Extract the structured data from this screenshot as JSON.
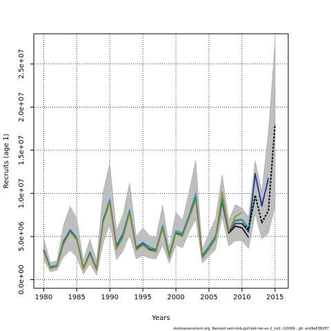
{
  "chart_data": {
    "type": "line",
    "xlabel": "Years",
    "ylabel": "Recruits (age 1)",
    "footer": "stockassessment.org, Revised  sam-tmb-gulf-bot-her-an-2_no2, r10069 ,  git: ecd9e6382ff7",
    "xlim": [
      1978.5,
      2017
    ],
    "ylim": [
      -1000000,
      28500000
    ],
    "x_ticks": [
      1980,
      1985,
      1990,
      1995,
      2000,
      2005,
      2010,
      2015
    ],
    "y_ticks": [
      0,
      5000000,
      10000000,
      15000000,
      20000000,
      25000000
    ],
    "y_tick_labels": [
      "0.0e+00",
      "5.0e+06",
      "1.0e+07",
      "1.5e+07",
      "2.0e+07",
      "2.5e+07"
    ],
    "grid": true,
    "confidence_band": {
      "color": "#bebebe",
      "x": [
        1980,
        1981,
        1982,
        1983,
        1984,
        1985,
        1986,
        1987,
        1988,
        1989,
        1990,
        1991,
        1992,
        1993,
        1994,
        1995,
        1996,
        1997,
        1998,
        1999,
        2000,
        2001,
        2002,
        2003,
        2004,
        2005,
        2006,
        2007,
        2008,
        2009,
        2010,
        2011,
        2012,
        2013,
        2014,
        2015
      ],
      "lower": [
        2300000,
        900000,
        1100000,
        2600000,
        3400000,
        2600000,
        600000,
        1800000,
        500000,
        4200000,
        6500000,
        2300000,
        3300000,
        5200000,
        2400000,
        2800000,
        2500000,
        2400000,
        4000000,
        1900000,
        4000000,
        3700000,
        5500000,
        7000000,
        1900000,
        2700000,
        3500000,
        7300000,
        3900000,
        4500000,
        4500000,
        3600000,
        7600000,
        4700000,
        5400000,
        8500000
      ],
      "upper": [
        4800000,
        2000000,
        2200000,
        6300000,
        8500000,
        7100000,
        2200000,
        4700000,
        2200000,
        10200000,
        13500000,
        5700000,
        7500000,
        11200000,
        5000000,
        6000000,
        5100000,
        4900000,
        8600000,
        3700000,
        7800000,
        6900000,
        10200000,
        13800000,
        3500000,
        5400000,
        7100000,
        12200000,
        6900000,
        8700000,
        8300000,
        7300000,
        13800000,
        10200000,
        17100000,
        27500000
      ]
    },
    "series": [
      {
        "color": "#000000",
        "dashed": false,
        "x": [
          1980,
          1981,
          1982,
          1983,
          1984,
          1985,
          1986,
          1987,
          1988,
          1989,
          1990,
          1991,
          1992,
          1993,
          1994,
          1995,
          1996,
          1997,
          1998,
          1999,
          2000,
          2001,
          2002,
          2003,
          2004,
          2005,
          2006,
          2007,
          2008,
          2009,
          2010,
          2011
        ],
        "y": [
          3300000,
          1300000,
          1500000,
          4200000,
          5600000,
          4700000,
          1200000,
          3000000,
          1100000,
          6700000,
          9000000,
          3600000,
          5000000,
          7800000,
          3500000,
          4100000,
          3500000,
          3300000,
          6000000,
          2600000,
          5400000,
          5100000,
          7200000,
          9300000,
          2600000,
          3600000,
          4800000,
          9000000,
          5400000,
          6200000,
          6000000,
          4900000
        ]
      },
      {
        "color": "#1a9fd0",
        "dashed": false,
        "x": [
          1980,
          1981,
          1982,
          1983,
          1984,
          1985,
          1986,
          1987,
          1988,
          1989,
          1990,
          1991,
          1992,
          1993,
          1994,
          1995,
          1996,
          1997,
          1998,
          1999,
          2000,
          2001,
          2002,
          2003,
          2004,
          2005,
          2006,
          2007,
          2008,
          2009,
          2010,
          2011,
          2012,
          2013,
          2014
        ],
        "y": [
          3500000,
          1500000,
          1700000,
          4500000,
          5800000,
          4900000,
          1400000,
          3200000,
          1300000,
          7000000,
          9300000,
          4000000,
          5400000,
          8100000,
          3800000,
          4300000,
          3800000,
          3500000,
          6300000,
          2900000,
          5700000,
          5400000,
          7500000,
          10000000,
          2800000,
          3900000,
          5100000,
          9500000,
          5700000,
          6900000,
          7000000,
          6000000,
          12000000,
          8800000,
          11500000
        ]
      },
      {
        "color": "#2c2c8c",
        "dashed": false,
        "x": [
          1980,
          1981,
          1982,
          1983,
          1984,
          1985,
          1986,
          1987,
          1988,
          1989,
          1990,
          1991,
          1992,
          1993,
          1994,
          1995,
          1996,
          1997,
          1998,
          1999,
          2000,
          2001,
          2002,
          2003,
          2004,
          2005,
          2006,
          2007,
          2008,
          2009,
          2010,
          2011,
          2012,
          2013,
          2014
        ],
        "y": [
          3400000,
          1400000,
          1600000,
          4300000,
          5700000,
          4800000,
          1300000,
          3100000,
          1200000,
          6800000,
          9100000,
          3800000,
          5200000,
          7900000,
          3600000,
          4200000,
          3600000,
          3400000,
          6100000,
          2700000,
          5500000,
          5200000,
          7300000,
          9500000,
          2700000,
          3700000,
          4900000,
          9200000,
          5500000,
          6500000,
          6500000,
          5500000,
          12300000,
          8500000,
          11800000
        ]
      },
      {
        "color": "#2a9a60",
        "dashed": false,
        "x": [
          1980,
          1981,
          1982,
          1983,
          1984,
          1985,
          1986,
          1987,
          1988,
          1989,
          1990,
          1991,
          1992,
          1993,
          1994,
          1995,
          1996,
          1997,
          1998,
          1999,
          2000,
          2001,
          2002,
          2003,
          2004,
          2005,
          2006,
          2007,
          2008,
          2009,
          2010,
          2011,
          2012
        ],
        "y": [
          3300000,
          1400000,
          1600000,
          4200000,
          5600000,
          4800000,
          1300000,
          3000000,
          1200000,
          6700000,
          9100000,
          3700000,
          5100000,
          7900000,
          3500000,
          4100000,
          3600000,
          3300000,
          6100000,
          2700000,
          5500000,
          5100000,
          7300000,
          9400000,
          2600000,
          3700000,
          4900000,
          9200000,
          5600000,
          6800000,
          6900000,
          5800000,
          9500000
        ]
      },
      {
        "color": "#a08a2a",
        "dashed": false,
        "x": [
          1980,
          1981,
          1982,
          1983,
          1984,
          1985,
          1986,
          1987,
          1988,
          1989,
          1990,
          1991,
          1992,
          1993,
          1994,
          1995,
          1996,
          1997,
          1998,
          1999,
          2000,
          2001,
          2002,
          2003,
          2004,
          2005,
          2006,
          2007,
          2008,
          2009,
          2010
        ],
        "y": [
          3200000,
          1300000,
          1500000,
          4100000,
          5500000,
          4600000,
          1200000,
          2900000,
          1100000,
          6600000,
          8900000,
          3500000,
          4900000,
          7700000,
          3400000,
          4000000,
          3400000,
          3200000,
          5900000,
          2500000,
          5300000,
          5000000,
          7100000,
          9200000,
          2500000,
          3500000,
          4700000,
          10200000,
          5600000,
          7300000,
          7800000
        ]
      },
      {
        "color": "#000000",
        "dashed": true,
        "x": [
          2010,
          2011,
          2012,
          2013,
          2014,
          2015
        ],
        "y": [
          6500000,
          5800000,
          9800000,
          6600000,
          8000000,
          18000000
        ]
      }
    ]
  }
}
